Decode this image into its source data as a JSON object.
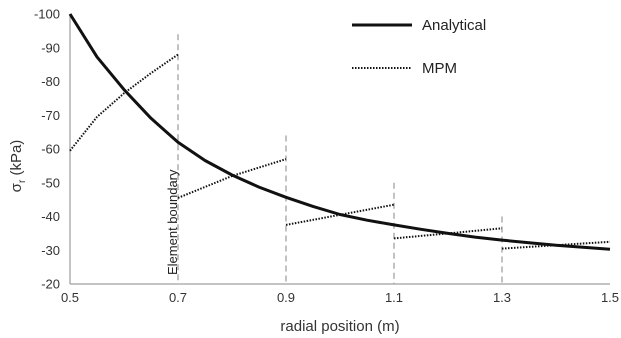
{
  "chart_data": {
    "type": "line",
    "xlabel": "radial position (m)",
    "ylabel_main": "σ",
    "ylabel_sub": "r",
    "ylabel_unit": " (kPa)",
    "xlim": [
      0.5,
      1.5
    ],
    "ylim": [
      -20,
      -100
    ],
    "x_ticks": [
      0.5,
      0.7,
      0.9,
      1.1,
      1.3,
      1.5
    ],
    "x_tick_labels": [
      "0.5",
      "0.7",
      "0.9",
      "1.1",
      "1.3",
      "1.5"
    ],
    "y_ticks": [
      -100,
      -90,
      -80,
      -70,
      -60,
      -50,
      -40,
      -30,
      -20
    ],
    "y_tick_labels": [
      "-100",
      "-90",
      "-80",
      "-70",
      "-60",
      "-50",
      "-40",
      "-30",
      "-20"
    ],
    "grid": false,
    "legend_position": "top-right",
    "series": [
      {
        "name": "Analytical",
        "style": "solid",
        "color": "#111111",
        "x": [
          0.5,
          0.55,
          0.6,
          0.65,
          0.7,
          0.75,
          0.8,
          0.85,
          0.9,
          0.95,
          1.0,
          1.05,
          1.1,
          1.15,
          1.2,
          1.25,
          1.3,
          1.35,
          1.4,
          1.45,
          1.5
        ],
        "y": [
          -100,
          -87.3,
          -77.6,
          -69.1,
          -62.0,
          -56.6,
          -52.3,
          -48.7,
          -45.7,
          -43.0,
          -40.6,
          -38.9,
          -37.5,
          -36.2,
          -35.0,
          -33.9,
          -33.0,
          -32.2,
          -31.5,
          -30.9,
          -30.3
        ]
      },
      {
        "name": "MPM",
        "style": "dotted",
        "color": "#111111",
        "segments": [
          {
            "x": [
              0.5,
              0.55,
              0.6,
              0.65,
              0.7
            ],
            "y": [
              -59.5,
              -69.5,
              -76.5,
              -82.5,
              -88.0
            ]
          },
          {
            "x": [
              0.7,
              0.8,
              0.9
            ],
            "y": [
              -45.5,
              -52.0,
              -57.0
            ]
          },
          {
            "x": [
              0.9,
              1.0,
              1.1
            ],
            "y": [
              -37.5,
              -40.5,
              -43.5
            ]
          },
          {
            "x": [
              1.1,
              1.2,
              1.3
            ],
            "y": [
              -33.5,
              -35.0,
              -36.5
            ]
          },
          {
            "x": [
              1.3,
              1.4,
              1.5
            ],
            "y": [
              -30.5,
              -31.5,
              -32.5
            ]
          }
        ]
      }
    ],
    "element_boundaries": [
      {
        "x": 0.7,
        "y_top": -94
      },
      {
        "x": 0.9,
        "y_top": -64
      },
      {
        "x": 1.1,
        "y_top": -50
      },
      {
        "x": 1.3,
        "y_top": -40
      }
    ],
    "annotation": "Element boundary",
    "boundary_color": "#999999"
  }
}
